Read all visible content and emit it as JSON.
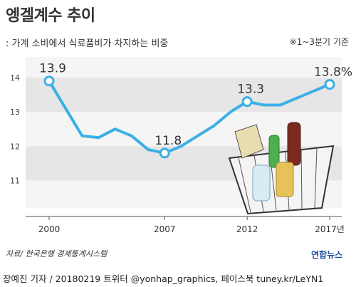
{
  "header": {
    "title": "엥겔계수 추이",
    "subtitle": ": 가계 소비에서 식료품비가 차지하는 비중",
    "period_note": "※1~3분기 기준"
  },
  "footer": {
    "source": "자료/ 한국은행 경제통계시스템",
    "credit": "장예진 기자 / 20180219 트위터 @yonhap_graphics, 페이스북 tuney.kr/LeYN1",
    "logo": "연합뉴스"
  },
  "colors": {
    "line": "#3bb0e6",
    "band_dark": "#e6e6e6",
    "band_light": "#f5f5f5",
    "axis": "#555555"
  },
  "chart_data": {
    "type": "line",
    "title": "엥겔계수 추이",
    "subtitle": ": 가계 소비에서 식료품비가 차지하는 비중",
    "xlabel": "",
    "ylabel": "",
    "ylim": [
      10.2,
      14.6
    ],
    "yticks": [
      11,
      12,
      13,
      14
    ],
    "ytick_labels": [
      "11",
      "12",
      "13",
      "14"
    ],
    "xlim": [
      2000,
      2017
    ],
    "xticks": [
      2000,
      2007,
      2012,
      2017
    ],
    "xtick_labels": [
      "2000",
      "2007",
      "2012",
      "2017년"
    ],
    "series": [
      {
        "x": [
          2000,
          2001,
          2002,
          2003,
          2004,
          2005,
          2006,
          2007,
          2008,
          2009,
          2010,
          2011,
          2012,
          2013,
          2014,
          2015,
          2016,
          2017
        ],
        "y": [
          13.9,
          13.1,
          12.3,
          12.25,
          12.5,
          12.3,
          11.9,
          11.8,
          12.0,
          12.3,
          12.6,
          13.0,
          13.3,
          13.2,
          13.2,
          13.4,
          13.6,
          13.8
        ]
      }
    ],
    "labeled_points": [
      {
        "x": 2000,
        "y": 13.9,
        "label": "13.9"
      },
      {
        "x": 2007,
        "y": 11.8,
        "label": "11.8"
      },
      {
        "x": 2012,
        "y": 13.3,
        "label": "13.3"
      },
      {
        "x": 2017,
        "y": 13.8,
        "label": "13.8%"
      }
    ],
    "grid": "alternating bands"
  }
}
